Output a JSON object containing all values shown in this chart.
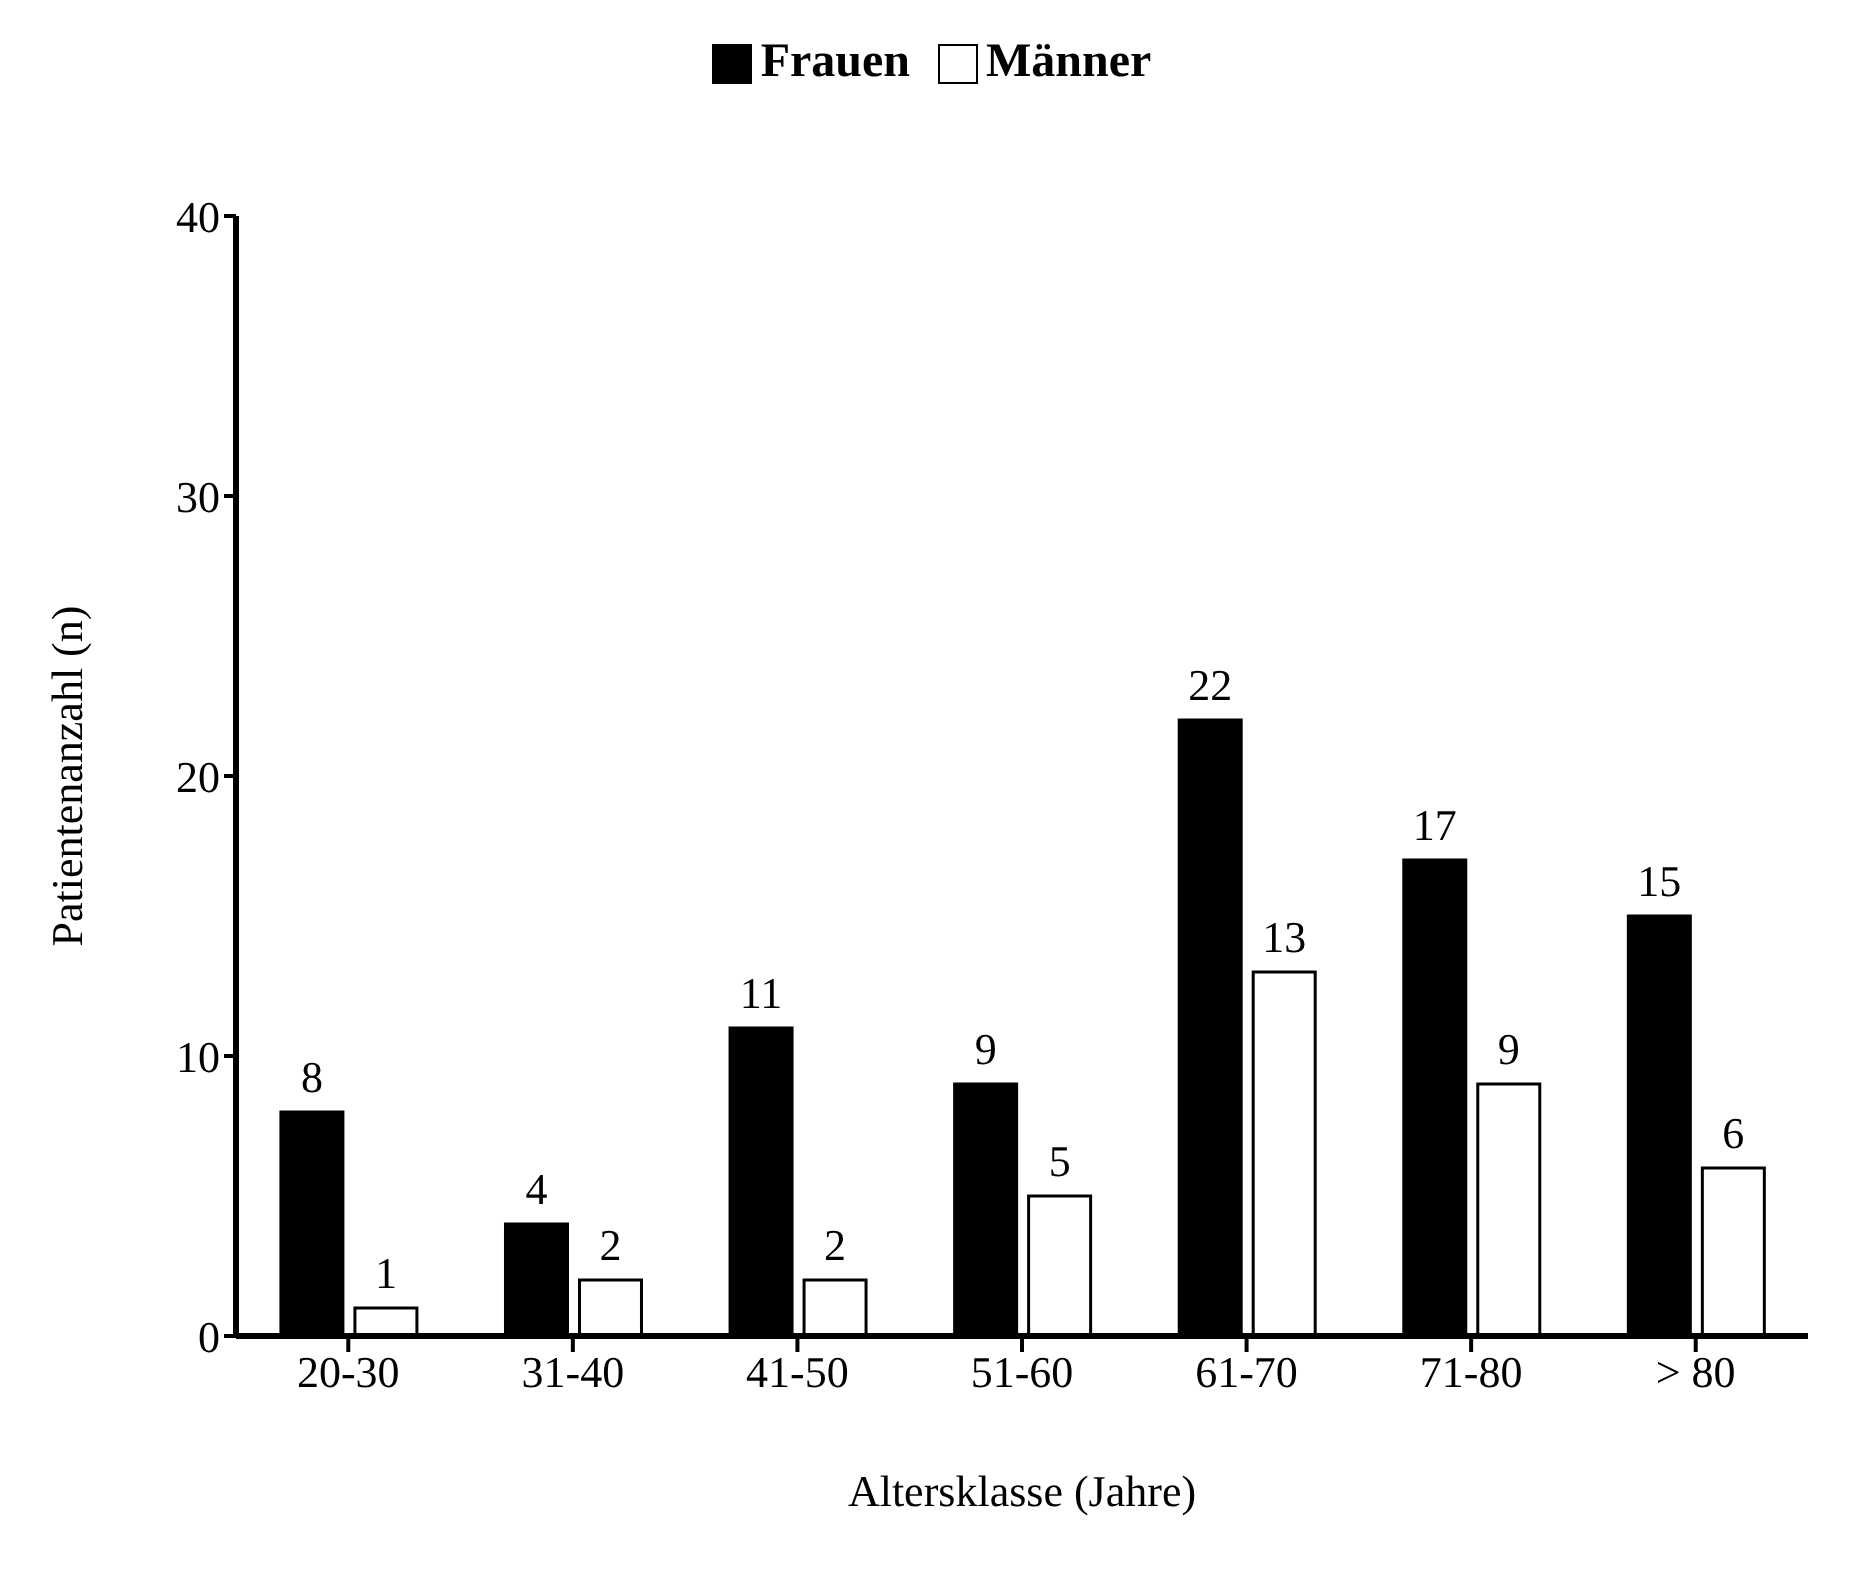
{
  "chart_data": {
    "type": "bar",
    "xlabel": "Altersklasse (Jahre)",
    "ylabel": "Patientenanzahl (n)",
    "categories": [
      "20-30",
      "31-40",
      "41-50",
      "51-60",
      "61-70",
      "71-80",
      "> 80"
    ],
    "series": [
      {
        "name": "Frauen",
        "color": "#000000",
        "values": [
          8,
          4,
          11,
          9,
          22,
          17,
          15
        ]
      },
      {
        "name": "Männer",
        "color": "#ffffff",
        "values": [
          1,
          2,
          2,
          5,
          13,
          9,
          6
        ]
      }
    ],
    "ylim": [
      0,
      40
    ],
    "yticks": [
      0,
      10,
      20,
      30,
      40
    ],
    "data_labels": true,
    "legend": "top",
    "grid": false
  }
}
